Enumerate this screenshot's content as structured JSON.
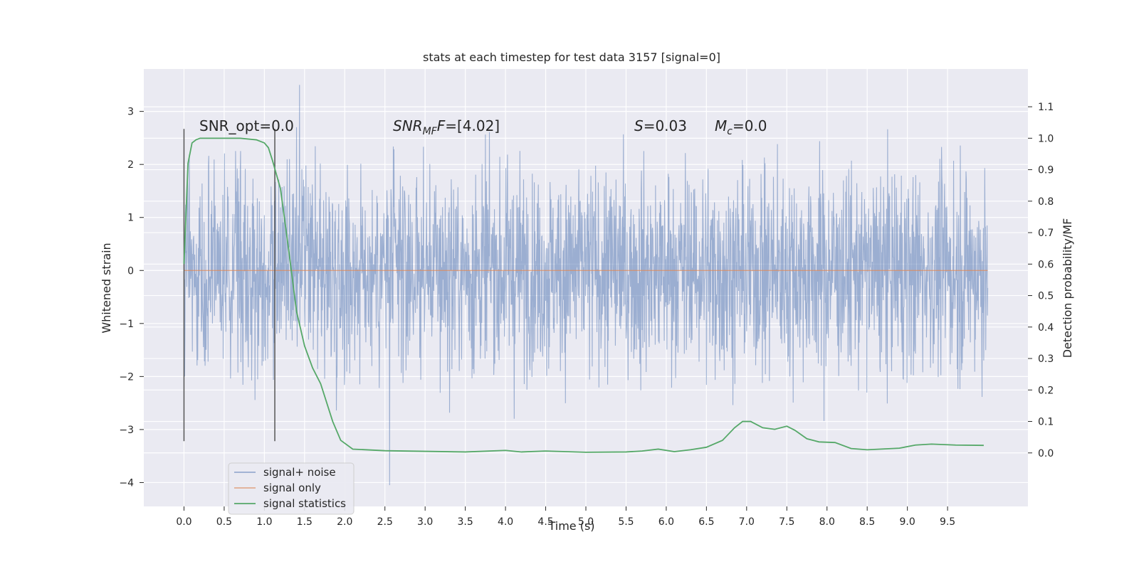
{
  "chart_data": {
    "type": "line",
    "title": "stats at each timestep for test data 3157 [signal=0]",
    "xlabel": "Time (s)",
    "ylabel": "Whitened strain",
    "y2label": "Detection probability/MF",
    "xlim": [
      -0.5,
      10.5
    ],
    "ylim": [
      -4.45,
      3.8
    ],
    "y2lim": [
      -0.17,
      1.22
    ],
    "xticks": [
      0.0,
      0.5,
      1.0,
      1.5,
      2.0,
      2.5,
      3.0,
      3.5,
      4.0,
      4.5,
      5.0,
      5.5,
      6.0,
      6.5,
      7.0,
      7.5,
      8.0,
      8.5,
      9.0,
      9.5
    ],
    "xtick_labels": [
      "0.0",
      "0.5",
      "1.0",
      "1.5",
      "2.0",
      "2.5",
      "3.0",
      "3.5",
      "4.0",
      "4.5",
      "5.0",
      "5.5",
      "6.0",
      "6.5",
      "7.0",
      "7.5",
      "8.0",
      "8.5",
      "9.0",
      "9.5"
    ],
    "yticks": [
      -4,
      -3,
      -2,
      -1,
      0,
      1,
      2,
      3
    ],
    "ytick_labels": [
      "−4",
      "−3",
      "−2",
      "−1",
      "0",
      "1",
      "2",
      "3"
    ],
    "y2ticks": [
      0.0,
      0.1,
      0.2,
      0.3,
      0.4,
      0.5,
      0.6,
      0.7,
      0.8,
      0.9,
      1.0,
      1.1
    ],
    "y2tick_labels": [
      "0.0",
      "0.1",
      "0.2",
      "0.3",
      "0.4",
      "0.5",
      "0.6",
      "0.7",
      "0.8",
      "0.9",
      "1.0",
      "1.1"
    ],
    "grid": true,
    "legend_position": "lower-left",
    "annotations": {
      "snr_opt": "SNR_opt=0.0",
      "snr_mf_name": "SNR",
      "snr_mf_sub": "MF",
      "snr_mf_value": "=[4.02]",
      "s_name": "S",
      "s_value": "=0.03",
      "mc_name": "M",
      "mc_sub": "c",
      "mc_value": "=0.0"
    },
    "vlines": [
      {
        "x": 0.0,
        "ymin": -3.22,
        "ymax": 2.67
      },
      {
        "x": 1.13,
        "ymin": -3.22,
        "ymax": 2.67
      }
    ],
    "series": [
      {
        "name": "signal+ noise",
        "color": "#4c72b0",
        "axis": "left",
        "x_range": [
          0.0,
          10.0
        ],
        "envelope": {
          "p_low": -1.45,
          "p_high": 1.45,
          "max": 3.5,
          "min": -4.05
        },
        "values_note_free": true
      },
      {
        "name": "signal only",
        "color": "#dd8452",
        "axis": "left",
        "x": [
          0.0,
          10.0
        ],
        "y": [
          0.0,
          0.0
        ]
      },
      {
        "name": "signal statistics",
        "color": "#55a868",
        "axis": "right",
        "x": [
          0.0,
          0.05,
          0.1,
          0.15,
          0.2,
          0.3,
          0.5,
          0.7,
          0.9,
          1.0,
          1.05,
          1.1,
          1.2,
          1.3,
          1.4,
          1.5,
          1.6,
          1.7,
          1.75,
          1.85,
          1.95,
          2.1,
          2.5,
          3.0,
          3.5,
          4.0,
          4.2,
          4.5,
          5.0,
          5.5,
          5.7,
          5.9,
          6.1,
          6.3,
          6.5,
          6.7,
          6.85,
          6.95,
          7.05,
          7.2,
          7.35,
          7.5,
          7.6,
          7.75,
          7.9,
          8.1,
          8.3,
          8.5,
          8.9,
          9.1,
          9.3,
          9.6,
          9.95
        ],
        "y": [
          0.6,
          0.92,
          0.985,
          0.995,
          1.0,
          1.0,
          1.0,
          1.0,
          0.995,
          0.985,
          0.97,
          0.93,
          0.84,
          0.65,
          0.45,
          0.34,
          0.27,
          0.22,
          0.18,
          0.1,
          0.04,
          0.012,
          0.007,
          0.005,
          0.003,
          0.008,
          0.003,
          0.006,
          0.002,
          0.003,
          0.006,
          0.012,
          0.004,
          0.01,
          0.018,
          0.04,
          0.08,
          0.1,
          0.1,
          0.08,
          0.075,
          0.085,
          0.072,
          0.045,
          0.035,
          0.033,
          0.014,
          0.01,
          0.015,
          0.025,
          0.028,
          0.025,
          0.024
        ]
      }
    ]
  }
}
